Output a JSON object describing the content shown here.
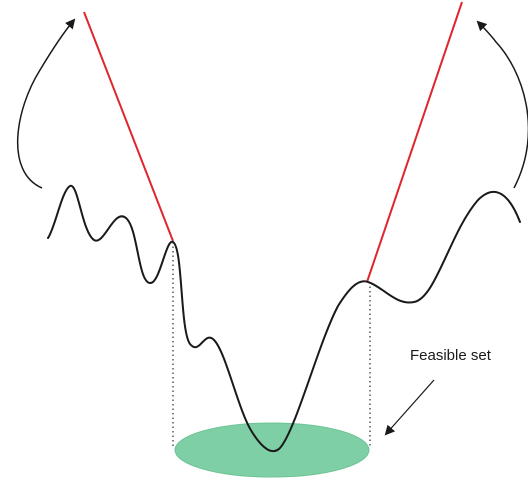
{
  "labels": {
    "feasible_set": "Feasible set"
  },
  "colors": {
    "curve": "#1a1a1a",
    "penalty_line": "#e0262b",
    "feasible_fill": "#7fcfa6",
    "feasible_stroke": "#6cc497",
    "arrow": "#1a1a1a",
    "dotted": "#1a1a1a",
    "background": "#ffffff"
  }
}
